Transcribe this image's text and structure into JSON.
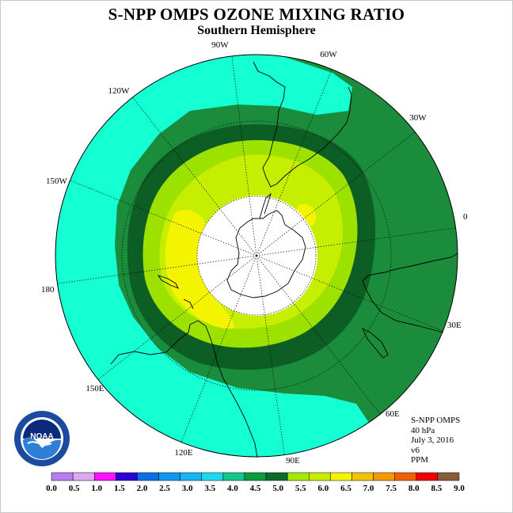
{
  "title": "S-NPP OMPS OZONE MIXING RATIO",
  "subtitle": "Southern Hemisphere",
  "longitude_labels": [
    "90W",
    "60W",
    "30W",
    "0",
    "30E",
    "60E",
    "90E",
    "120E",
    "150E",
    "180",
    "150W",
    "120W"
  ],
  "info": {
    "instrument": "S-NPP OMPS",
    "pressure": "40 hPa",
    "date": "July 3, 2016",
    "version": "v6",
    "units": "PPM"
  },
  "colorbar": {
    "labels": [
      "0.0",
      "0.5",
      "1.0",
      "1.5",
      "2.0",
      "2.5",
      "3.0",
      "3.5",
      "4.0",
      "4.5",
      "5.0",
      "5.5",
      "6.0",
      "6.5",
      "7.0",
      "7.5",
      "8.0",
      "8.5",
      "9.0"
    ],
    "colors": [
      "#b57df0",
      "#dca9f0",
      "#ff10ff",
      "#2b00d8",
      "#0a6fe6",
      "#1297f0",
      "#15b4f2",
      "#1fd8ee",
      "#13c68c",
      "#0e9a3e",
      "#0e6a2a",
      "#a6e800",
      "#c8ea00",
      "#f4f400",
      "#f2c300",
      "#f09a00",
      "#f26000",
      "#f00000",
      "#8a5a3c"
    ]
  },
  "logo": {
    "text": "NOAA",
    "ring_text": "NATIONAL OCEANIC AND ATMOSPHERIC ADMINISTRATION",
    "bottom_text": "U.S. DEPARTMENT OF COMMERCE"
  },
  "map_colors": {
    "ocean_outer": "#14ffd2",
    "band_45": "#1a8c3c",
    "band_50": "#0c5e24",
    "band_55": "#9de100",
    "band_60": "#c5ee00",
    "band_65": "#f4f400",
    "pole_fill": "#ffffff"
  }
}
